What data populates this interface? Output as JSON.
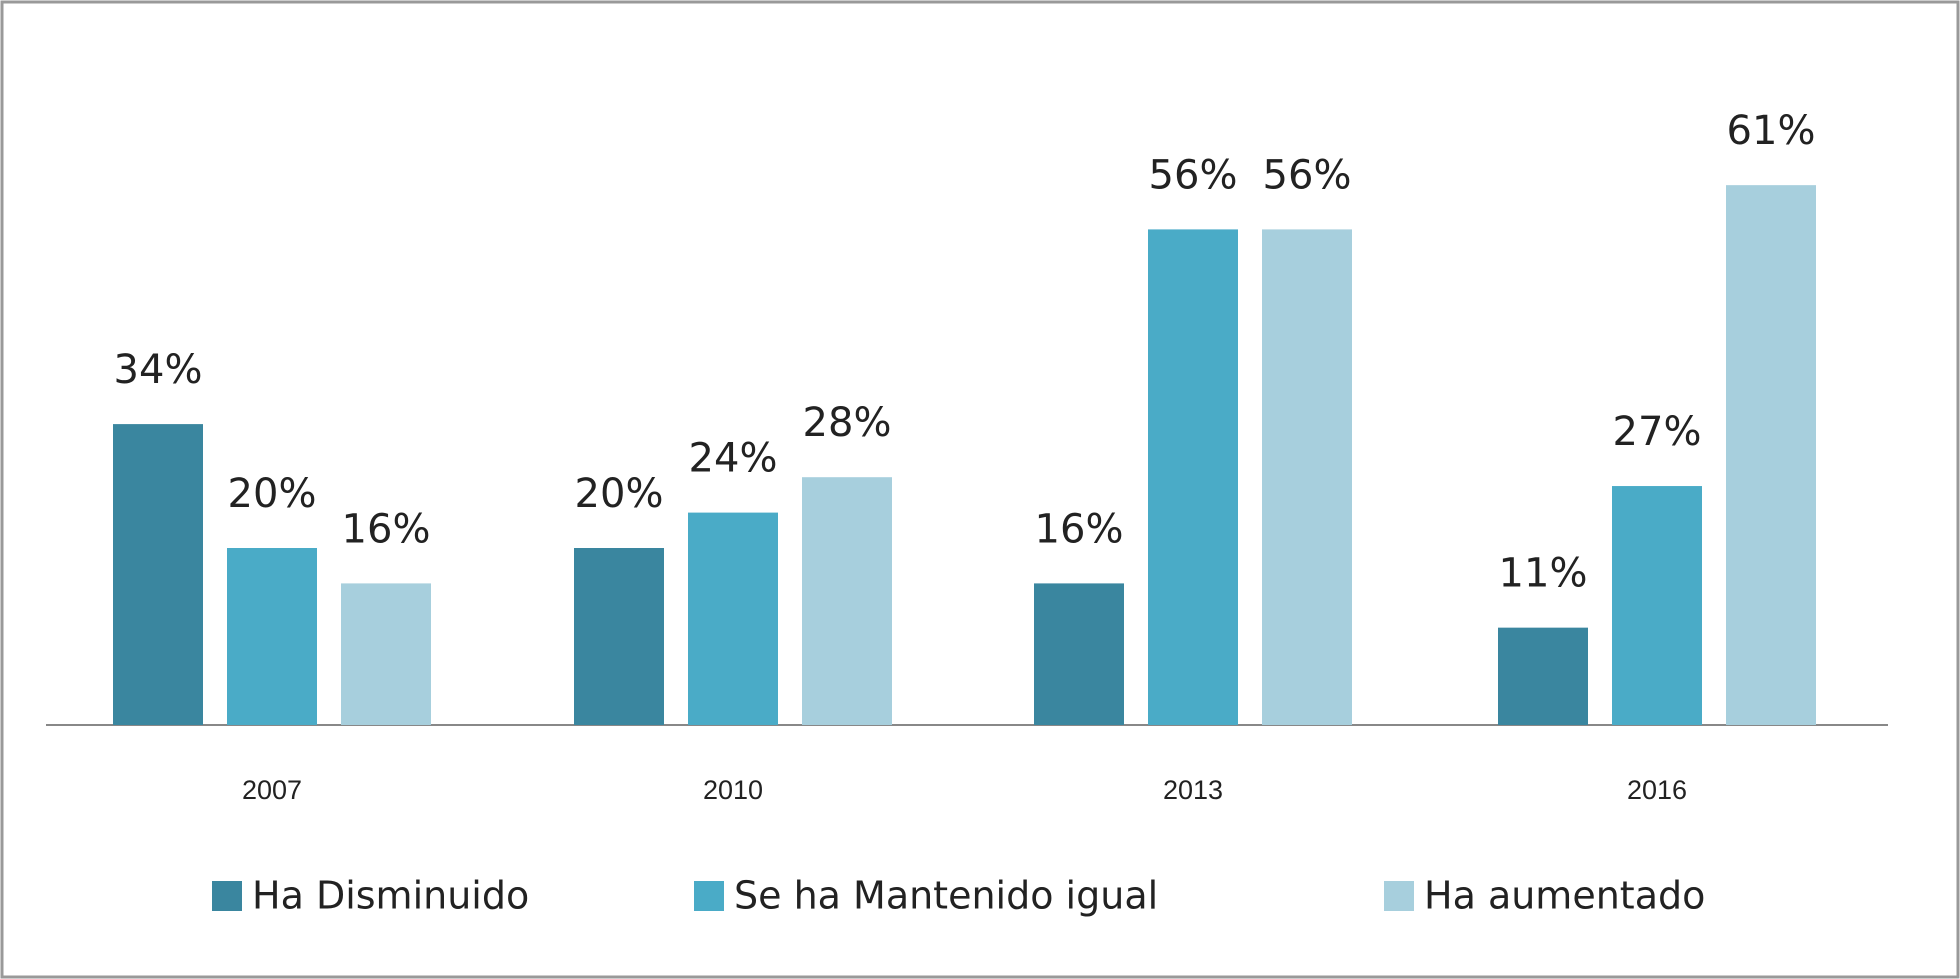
{
  "chart_data": {
    "type": "bar",
    "categories": [
      "2007",
      "2010",
      "2013",
      "2016"
    ],
    "series": [
      {
        "name": "Ha Disminuido",
        "color": "#3a869f",
        "values": [
          34,
          20,
          16,
          11
        ],
        "value_labels": [
          "34%",
          "20%",
          "16%",
          "11%"
        ]
      },
      {
        "name": "Se ha Mantenido igual",
        "color": "#4aabc7",
        "values": [
          20,
          24,
          56,
          27
        ],
        "value_labels": [
          "20%",
          "24%",
          "56%",
          "27%"
        ]
      },
      {
        "name": "Ha aumentado",
        "color": "#a7cfdd",
        "values": [
          16,
          28,
          56,
          61
        ],
        "value_labels": [
          "16%",
          "28%",
          "56%",
          "61%"
        ]
      }
    ],
    "legend": "bottom"
  }
}
